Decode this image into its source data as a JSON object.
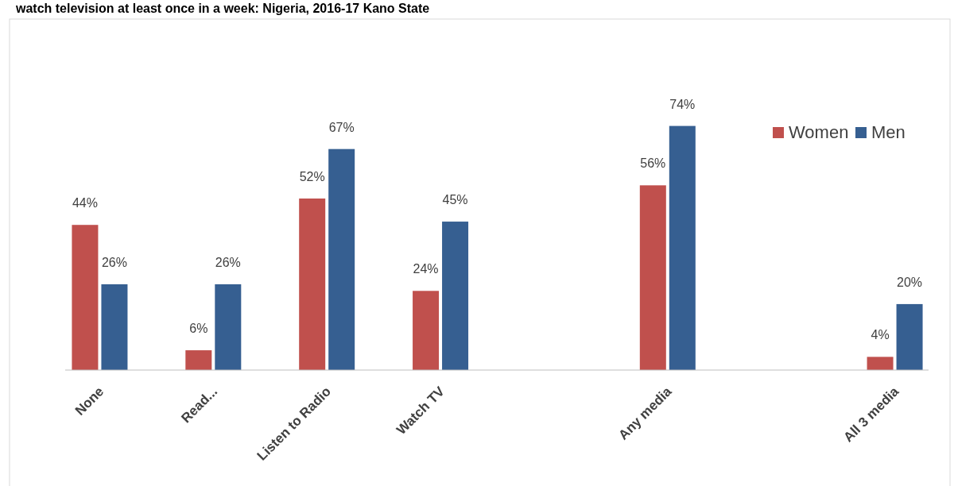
{
  "chart_data": {
    "type": "bar",
    "title": "watch television at least once in a week: Nigeria, 2016-17 Kano State",
    "categories": [
      "None",
      "Read...",
      "Listen to Radio",
      "Watch TV",
      null,
      "Any media",
      null,
      "All 3 media"
    ],
    "series": [
      {
        "name": "Women",
        "color": "#c0504d",
        "values": [
          44,
          6,
          52,
          24,
          null,
          56,
          null,
          4
        ],
        "value_labels": [
          "44%",
          "6%",
          "52%",
          "24%",
          null,
          "56%",
          null,
          "4%"
        ]
      },
      {
        "name": "Men",
        "color": "#365f91",
        "values": [
          26,
          26,
          67,
          45,
          null,
          74,
          null,
          20
        ],
        "value_labels": [
          "26%",
          "26%",
          "67%",
          "45%",
          null,
          "74%",
          null,
          "20%"
        ]
      }
    ],
    "legend": "top right"
  }
}
